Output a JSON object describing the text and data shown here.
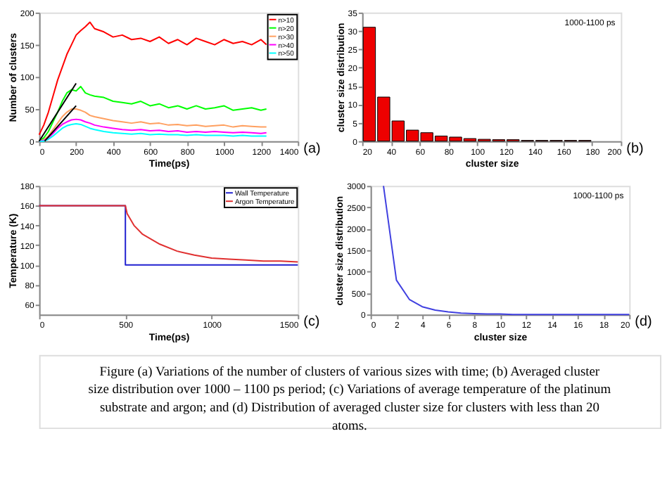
{
  "chart_data": [
    {
      "type": "line",
      "xlabel": "Time(ps)",
      "ylabel": "Number of clusters",
      "xlim": [
        0,
        1400
      ],
      "xticks": [
        0,
        200,
        400,
        600,
        800,
        1000,
        1200,
        1400
      ],
      "ylim": [
        0,
        200
      ],
      "yticks": [
        0,
        50,
        100,
        150,
        200
      ],
      "legend": "top right",
      "grid": false,
      "annotations": [
        "(a)"
      ],
      "x": [
        0,
        25,
        50,
        75,
        100,
        125,
        150,
        175,
        200,
        225,
        250,
        275,
        300,
        350,
        400,
        450,
        500,
        550,
        600,
        650,
        700,
        750,
        800,
        850,
        900,
        950,
        1000,
        1050,
        1100,
        1150,
        1200,
        1230
      ],
      "series": [
        {
          "name": "n>10",
          "color": "#ff0000",
          "values": [
            10,
            25,
            45,
            70,
            95,
            115,
            135,
            150,
            165,
            172,
            178,
            185,
            175,
            170,
            162,
            165,
            158,
            160,
            155,
            162,
            152,
            158,
            150,
            160,
            155,
            150,
            158,
            152,
            155,
            150,
            158,
            150
          ]
        },
        {
          "name": "n>20",
          "color": "#00ff00",
          "values": [
            0,
            5,
            15,
            30,
            45,
            62,
            75,
            80,
            78,
            85,
            75,
            72,
            70,
            68,
            62,
            60,
            58,
            62,
            55,
            58,
            52,
            55,
            50,
            55,
            50,
            52,
            55,
            48,
            50,
            52,
            48,
            50
          ]
        },
        {
          "name": "n>30",
          "color": "#ffa060",
          "values": [
            0,
            2,
            8,
            18,
            28,
            38,
            45,
            50,
            50,
            48,
            45,
            40,
            38,
            35,
            32,
            30,
            28,
            30,
            27,
            28,
            25,
            26,
            24,
            25,
            23,
            24,
            25,
            22,
            24,
            23,
            22,
            22
          ]
        },
        {
          "name": "n>40",
          "color": "#ff00ff",
          "values": [
            0,
            1,
            5,
            12,
            20,
            26,
            30,
            33,
            34,
            33,
            30,
            28,
            25,
            22,
            20,
            18,
            17,
            18,
            16,
            17,
            15,
            16,
            14,
            15,
            14,
            15,
            14,
            13,
            14,
            13,
            12,
            13
          ]
        },
        {
          "name": "n>50",
          "color": "#00ffff",
          "values": [
            0,
            0,
            3,
            8,
            14,
            20,
            24,
            26,
            27,
            26,
            23,
            20,
            18,
            15,
            13,
            12,
            11,
            12,
            10,
            11,
            10,
            10,
            9,
            10,
            9,
            9,
            9,
            8,
            9,
            8,
            8,
            8
          ]
        },
        {
          "type": "line",
          "color": "#000000",
          "x": [
            0,
            200
          ],
          "values": [
            0,
            90
          ]
        },
        {
          "type": "line",
          "color": "#000000",
          "x": [
            30,
            200
          ],
          "values": [
            0,
            55
          ]
        }
      ]
    },
    {
      "type": "bar",
      "xlabel": "cluster size",
      "ylabel": "cluster size distribution",
      "xlim": [
        20,
        200
      ],
      "xticks": [
        20,
        40,
        60,
        80,
        100,
        120,
        140,
        160,
        180,
        200
      ],
      "ylim": [
        0,
        35
      ],
      "yticks": [
        0,
        5,
        10,
        15,
        20,
        25,
        30,
        35
      ],
      "grid": false,
      "annotations": [
        "1000-1100 ps",
        "(b)"
      ],
      "x": [
        25,
        35,
        45,
        55,
        65,
        75,
        85,
        95,
        105,
        115,
        125,
        135,
        145,
        155,
        165,
        175
      ],
      "series": [
        {
          "color": "#ee0000",
          "values": [
            31,
            12,
            5.5,
            3,
            2.3,
            1.4,
            1.1,
            0.7,
            0.5,
            0.4,
            0.4,
            0.2,
            0.2,
            0.2,
            0.2,
            0.2
          ]
        }
      ]
    },
    {
      "type": "line",
      "xlabel": "Time(ps)",
      "ylabel": "Temperature (K)",
      "xlim": [
        0,
        1500
      ],
      "xticks": [
        0,
        500,
        1000,
        1500
      ],
      "ylim": [
        50,
        180
      ],
      "yticks": [
        60,
        80,
        100,
        120,
        140,
        160,
        180
      ],
      "legend": "top right",
      "grid": false,
      "annotations": [
        "(c)"
      ],
      "series": [
        {
          "name": "Wall Temperature",
          "color": "#2020d0",
          "x": [
            0,
            500,
            500,
            1500
          ],
          "values": [
            160,
            160,
            100,
            100
          ]
        },
        {
          "name": "Argon Temperature",
          "color": "#e03030",
          "x": [
            0,
            500,
            510,
            550,
            600,
            700,
            800,
            900,
            1000,
            1100,
            1200,
            1300,
            1400,
            1500
          ],
          "values": [
            160,
            160,
            152,
            140,
            131,
            121,
            114,
            110,
            107,
            106,
            105,
            104,
            104,
            103
          ]
        }
      ]
    },
    {
      "type": "line",
      "xlabel": "cluster size",
      "ylabel": "cluster size distribution",
      "xlim": [
        0,
        20
      ],
      "xticks": [
        0,
        2,
        4,
        6,
        8,
        10,
        12,
        14,
        16,
        18,
        20
      ],
      "ylim": [
        0,
        3000
      ],
      "yticks": [
        0,
        500,
        1000,
        1500,
        2000,
        2500,
        3000
      ],
      "grid": false,
      "annotations": [
        "1000-1100 ps",
        "(d)"
      ],
      "x": [
        1,
        2,
        3,
        4,
        5,
        6,
        7,
        8,
        9,
        10,
        11,
        12,
        13,
        14,
        15,
        16,
        17,
        18,
        19,
        20
      ],
      "series": [
        {
          "color": "#4040e0",
          "values": [
            3000,
            800,
            350,
            180,
            100,
            60,
            30,
            20,
            10,
            10,
            0,
            0,
            0,
            0,
            0,
            0,
            0,
            0,
            0,
            0
          ]
        }
      ]
    },
    {
      "type": "other",
      "annotations": [
        "Figure (a) Variations of the number of clusters of various sizes with time; (b) Averaged cluster size distribution over 1000 – 1100 ps period; (c) Variations of average temperature of the platinum substrate and argon; and (d) Distribution of averaged cluster size for clusters with less than 20 atoms."
      ]
    }
  ]
}
